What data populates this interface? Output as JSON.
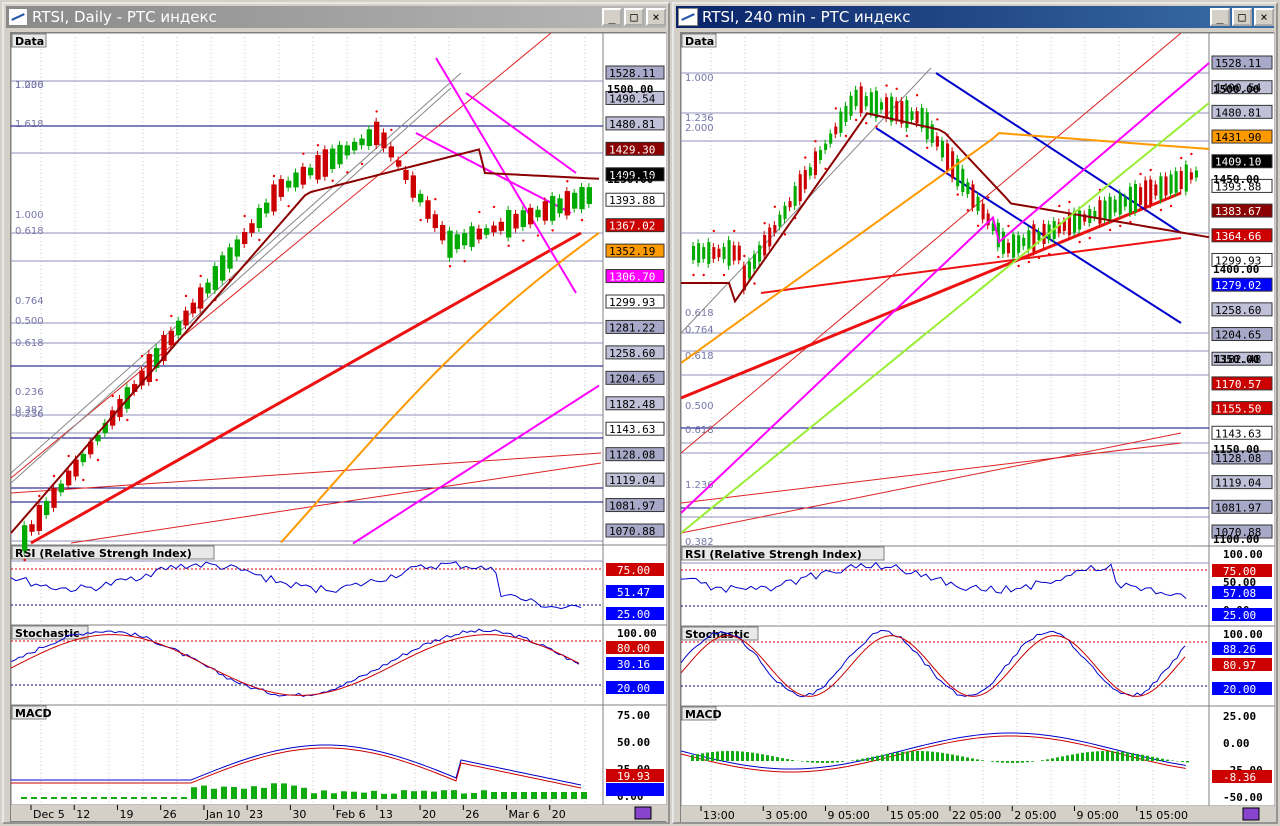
{
  "left_window": {
    "title": "RTSI, Daily - РТС индекс",
    "buttons": {
      "minimize": "_",
      "maximize": "□",
      "close": "×"
    },
    "panels": {
      "price": {
        "label": "Data",
        "fib_labels": [
          "1.000",
          "1.236",
          "1.618",
          "1.000",
          "0.618",
          "0.764",
          "0.500",
          "0.618",
          "0.236",
          "0.382",
          "0.236"
        ],
        "axis_ticks": [
          "1500.00",
          "1250.00"
        ],
        "price_tags": [
          {
            "value": "1528.11",
            "color": "#a8a8c8"
          },
          {
            "value": "1490.54",
            "color": "#c0c0d8"
          },
          {
            "value": "1480.81",
            "color": "#c0c0d8"
          },
          {
            "value": "1429.30",
            "color": "#8b0000",
            "text_color": "#ffffff"
          },
          {
            "value": "1409.10",
            "color": "#000000",
            "text_color": "#ffffff"
          },
          {
            "value": "1393.88",
            "color": "#ffffff"
          },
          {
            "value": "1367.02",
            "color": "#cc0000",
            "text_color": "#ffffff"
          },
          {
            "value": "1352.19",
            "color": "#ff9900"
          },
          {
            "value": "1306.70",
            "color": "#ff00ff",
            "text_color": "#ffffff"
          },
          {
            "value": "1299.93",
            "color": "#ffffff"
          },
          {
            "value": "1281.22",
            "color": "#a8a8c8"
          },
          {
            "value": "1258.60",
            "color": "#c0c0d8"
          },
          {
            "value": "1204.65",
            "color": "#a8a8c8"
          },
          {
            "value": "1182.48",
            "color": "#c0c0d8"
          },
          {
            "value": "1143.63",
            "color": "#ffffff"
          },
          {
            "value": "1128.08",
            "color": "#a8a8c8"
          },
          {
            "value": "1119.04",
            "color": "#c0c0d8"
          },
          {
            "value": "1081.97",
            "color": "#a8a8c8"
          },
          {
            "value": "1070.88",
            "color": "#a8a8c8"
          }
        ]
      },
      "rsi": {
        "label": "RSI (Relative Strengh Index)",
        "tags": [
          {
            "value": "75.00",
            "color": "#cc0000",
            "text_color": "#ffffff"
          },
          {
            "value": "51.47",
            "color": "#0000ff",
            "text_color": "#ffffff"
          },
          {
            "value": "25.00",
            "color": "#0000ff",
            "text_color": "#ffffff"
          }
        ]
      },
      "stochastic": {
        "label": "Stochastic",
        "ticks": [
          "100.00",
          "50.00",
          "0.00"
        ],
        "tags": [
          {
            "value": "80.00",
            "color": "#cc0000",
            "text_color": "#ffffff"
          },
          {
            "value": "30.16",
            "color": "#0000ff",
            "text_color": "#ffffff"
          },
          {
            "value": "20.00",
            "color": "#0000ff",
            "text_color": "#ffffff"
          }
        ]
      },
      "macd": {
        "label": "MACD",
        "ticks": [
          "75.00",
          "50.00",
          "25.00",
          "0.00"
        ],
        "tags": [
          {
            "value": "19.93",
            "color": "#cc0000",
            "text_color": "#ffffff"
          },
          {
            "value": "",
            "color": "#0000ff",
            "text_color": "#ffffff"
          }
        ]
      }
    },
    "x_axis": [
      "Dec 5",
      "12",
      "19",
      "26",
      "Jan 10",
      "23",
      "30",
      "Feb 6",
      "13",
      "20",
      "26",
      "Mar 6",
      "20"
    ]
  },
  "right_window": {
    "title": "RTSI, 240 min - РТС индекс",
    "buttons": {
      "minimize": "_",
      "maximize": "□",
      "close": "×"
    },
    "panels": {
      "price": {
        "label": "Data",
        "fib_labels": [
          "1.000",
          "1.236",
          "2.000",
          "0.618",
          "0.764",
          "0.618",
          "0.500",
          "0.618",
          "1.236",
          "0.382"
        ],
        "axis_ticks": [
          "1500.00",
          "1450.00",
          "1400.00",
          "1350.00",
          "1150.00",
          "1100.00"
        ],
        "price_tags": [
          {
            "value": "1528.11",
            "color": "#a8a8c8"
          },
          {
            "value": "1490.54",
            "color": "#c0c0d8"
          },
          {
            "value": "1480.81",
            "color": "#c0c0d8"
          },
          {
            "value": "1431.90",
            "color": "#ff9900"
          },
          {
            "value": "1409.10",
            "color": "#000000",
            "text_color": "#ffffff"
          },
          {
            "value": "1393.88",
            "color": "#ffffff"
          },
          {
            "value": "1383.67",
            "color": "#8b0000",
            "text_color": "#ffffff"
          },
          {
            "value": "1364.66",
            "color": "#cc0000",
            "text_color": "#ffffff"
          },
          {
            "value": "1299.93",
            "color": "#ffffff"
          },
          {
            "value": "1279.02",
            "color": "#0000ff",
            "text_color": "#ffffff"
          },
          {
            "value": "1258.60",
            "color": "#c0c0d8"
          },
          {
            "value": "1204.65",
            "color": "#a8a8c8"
          },
          {
            "value": "1182.48",
            "color": "#c0c0d8"
          },
          {
            "value": "1170.57",
            "color": "#cc0000",
            "text_color": "#ffffff"
          },
          {
            "value": "1155.50",
            "color": "#cc0000",
            "text_color": "#ffffff"
          },
          {
            "value": "1143.63",
            "color": "#ffffff"
          },
          {
            "value": "1128.08",
            "color": "#a8a8c8"
          },
          {
            "value": "1119.04",
            "color": "#c0c0d8"
          },
          {
            "value": "1081.97",
            "color": "#a8a8c8"
          },
          {
            "value": "1070.88",
            "color": "#a8a8c8"
          }
        ]
      },
      "rsi": {
        "label": "RSI (Relative Strengh Index)",
        "ticks": [
          "100.00",
          "50.00",
          "0.00"
        ],
        "tags": [
          {
            "value": "75.00",
            "color": "#cc0000",
            "text_color": "#ffffff"
          },
          {
            "value": "57.08",
            "color": "#0000ff",
            "text_color": "#ffffff"
          },
          {
            "value": "25.00",
            "color": "#0000ff",
            "text_color": "#ffffff"
          }
        ]
      },
      "stochastic": {
        "label": "Stochastic",
        "ticks": [
          "100.00",
          "50.00",
          "0.00"
        ],
        "tags": [
          {
            "value": "88.26",
            "color": "#0000ff",
            "text_color": "#ffffff"
          },
          {
            "value": "80.97",
            "color": "#cc0000",
            "text_color": "#ffffff"
          },
          {
            "value": "20.00",
            "color": "#0000ff",
            "text_color": "#ffffff"
          }
        ]
      },
      "macd": {
        "label": "MACD",
        "ticks": [
          "25.00",
          "0.00",
          "-25.00",
          "-50.00"
        ],
        "tags": [
          {
            "value": "-8.36",
            "color": "#cc0000",
            "text_color": "#ffffff"
          }
        ]
      }
    },
    "x_axis": [
      "13:00",
      "3 05:00",
      "9 05:00",
      "15 05:00",
      "22 05:00",
      "2 05:00",
      "9 05:00",
      "15 05:00"
    ]
  },
  "colors": {
    "candle_up": "#00aa00",
    "candle_down": "#cc0000",
    "ma_short": "#8b0000",
    "ma_mid": "#ff9900",
    "ma_long": "#ff00ff",
    "ma_xlong": "#99ee33",
    "trend_line": "#ee1111",
    "channel": "#0000cc",
    "channel_left": "#ff00ff",
    "sar": "#ee0000"
  }
}
